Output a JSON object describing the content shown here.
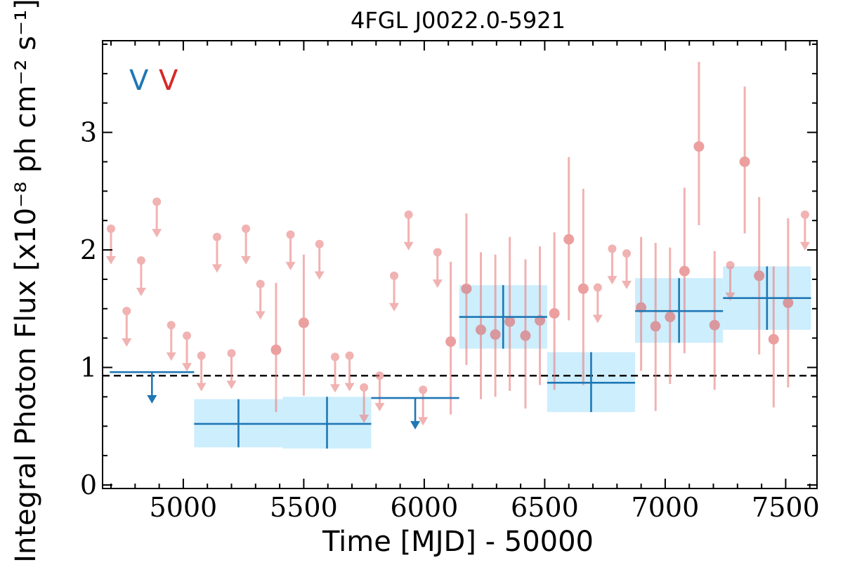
{
  "chart_data": {
    "type": "scatter",
    "title": "4FGL J0022.0-5921",
    "xlabel": "Time [MJD] - 50000",
    "ylabel": "Integral Photon Flux [x10⁻⁸ ph cm⁻² s⁻¹]",
    "xlim": [
      4665,
      7630
    ],
    "ylim": [
      -0.03,
      3.78
    ],
    "xticks": [
      5000,
      5500,
      6000,
      6500,
      7000,
      7500
    ],
    "yticks": [
      0,
      1,
      2,
      3
    ],
    "grid": false,
    "legend_text": [
      "V",
      "V"
    ],
    "legend_colors": [
      "#1f77b4",
      "#d62728"
    ],
    "reference_line": {
      "y": 0.93,
      "style": "dashed",
      "color": "#000000"
    },
    "series": [
      {
        "bin_width": 60,
        "color": "#e88080",
        "detections": [
          {
            "x": 5385,
            "y": 1.15,
            "lo": 0.62,
            "hi": 1.72
          },
          {
            "x": 5500,
            "y": 1.38,
            "lo": 0.76,
            "hi": 1.96
          },
          {
            "x": 6110,
            "y": 1.22,
            "lo": 0.6,
            "hi": 1.9
          },
          {
            "x": 6175,
            "y": 1.67,
            "lo": 1.02,
            "hi": 2.31
          },
          {
            "x": 6235,
            "y": 1.32,
            "lo": 0.73,
            "hi": 1.98
          },
          {
            "x": 6295,
            "y": 1.28,
            "lo": 0.75,
            "hi": 1.96
          },
          {
            "x": 6355,
            "y": 1.39,
            "lo": 0.8,
            "hi": 2.11
          },
          {
            "x": 6420,
            "y": 1.27,
            "lo": 0.65,
            "hi": 1.92
          },
          {
            "x": 6480,
            "y": 1.4,
            "lo": 0.85,
            "hi": 2.03
          },
          {
            "x": 6540,
            "y": 1.46,
            "lo": 0.81,
            "hi": 2.15
          },
          {
            "x": 6600,
            "y": 2.09,
            "lo": 1.4,
            "hi": 2.79
          },
          {
            "x": 6660,
            "y": 1.67,
            "lo": 0.85,
            "hi": 2.52
          },
          {
            "x": 6900,
            "y": 1.51,
            "lo": 0.97,
            "hi": 2.11
          },
          {
            "x": 6960,
            "y": 1.35,
            "lo": 0.63,
            "hi": 2.06
          },
          {
            "x": 7020,
            "y": 1.43,
            "lo": 0.86,
            "hi": 2.02
          },
          {
            "x": 7080,
            "y": 1.82,
            "lo": 1.12,
            "hi": 2.53
          },
          {
            "x": 7140,
            "y": 2.88,
            "lo": 2.21,
            "hi": 3.6
          },
          {
            "x": 7205,
            "y": 1.36,
            "lo": 0.81,
            "hi": 1.99
          },
          {
            "x": 7330,
            "y": 2.75,
            "lo": 2.14,
            "hi": 3.39
          },
          {
            "x": 7390,
            "y": 1.78,
            "lo": 1.11,
            "hi": 2.45
          },
          {
            "x": 7450,
            "y": 1.24,
            "lo": 0.66,
            "hi": 1.86
          },
          {
            "x": 7510,
            "y": 1.55,
            "lo": 0.83,
            "hi": 2.27
          }
        ],
        "upper_limits": [
          {
            "x": 4700,
            "y": 2.18
          },
          {
            "x": 4765,
            "y": 1.48
          },
          {
            "x": 4825,
            "y": 1.91
          },
          {
            "x": 4890,
            "y": 2.41
          },
          {
            "x": 4950,
            "y": 1.36
          },
          {
            "x": 5015,
            "y": 1.27
          },
          {
            "x": 5075,
            "y": 1.1
          },
          {
            "x": 5140,
            "y": 2.11
          },
          {
            "x": 5200,
            "y": 1.12
          },
          {
            "x": 5260,
            "y": 2.18
          },
          {
            "x": 5320,
            "y": 1.71
          },
          {
            "x": 5445,
            "y": 2.13
          },
          {
            "x": 5565,
            "y": 2.05
          },
          {
            "x": 5630,
            "y": 1.09
          },
          {
            "x": 5690,
            "y": 1.1
          },
          {
            "x": 5750,
            "y": 0.83
          },
          {
            "x": 5815,
            "y": 0.93
          },
          {
            "x": 5875,
            "y": 1.78
          },
          {
            "x": 5935,
            "y": 2.3
          },
          {
            "x": 5995,
            "y": 0.81
          },
          {
            "x": 6055,
            "y": 1.98
          },
          {
            "x": 6780,
            "y": 2.01
          },
          {
            "x": 6840,
            "y": 1.97
          },
          {
            "x": 7270,
            "y": 1.87
          },
          {
            "x": 7580,
            "y": 2.3
          },
          {
            "x": 6720,
            "y": 1.68
          }
        ]
      },
      {
        "color": "#1f77b4",
        "fill": "#cdeefc",
        "detections": [
          {
            "x0": 5045,
            "x1": 5413,
            "y": 0.52,
            "lo": 0.32,
            "hi": 0.73
          },
          {
            "x0": 5413,
            "x1": 5780,
            "y": 0.52,
            "lo": 0.31,
            "hi": 0.75
          },
          {
            "x0": 6145,
            "x1": 6510,
            "y": 1.43,
            "lo": 1.16,
            "hi": 1.7
          },
          {
            "x0": 6510,
            "x1": 6875,
            "y": 0.87,
            "lo": 0.62,
            "hi": 1.13
          },
          {
            "x0": 6875,
            "x1": 7240,
            "y": 1.48,
            "lo": 1.21,
            "hi": 1.76
          },
          {
            "x0": 7240,
            "x1": 7605,
            "y": 1.59,
            "lo": 1.32,
            "hi": 1.86
          }
        ],
        "upper_limits": [
          {
            "x0": 4695,
            "x1": 5045,
            "y": 0.96
          },
          {
            "x0": 5780,
            "x1": 6145,
            "y": 0.74
          }
        ]
      }
    ]
  }
}
